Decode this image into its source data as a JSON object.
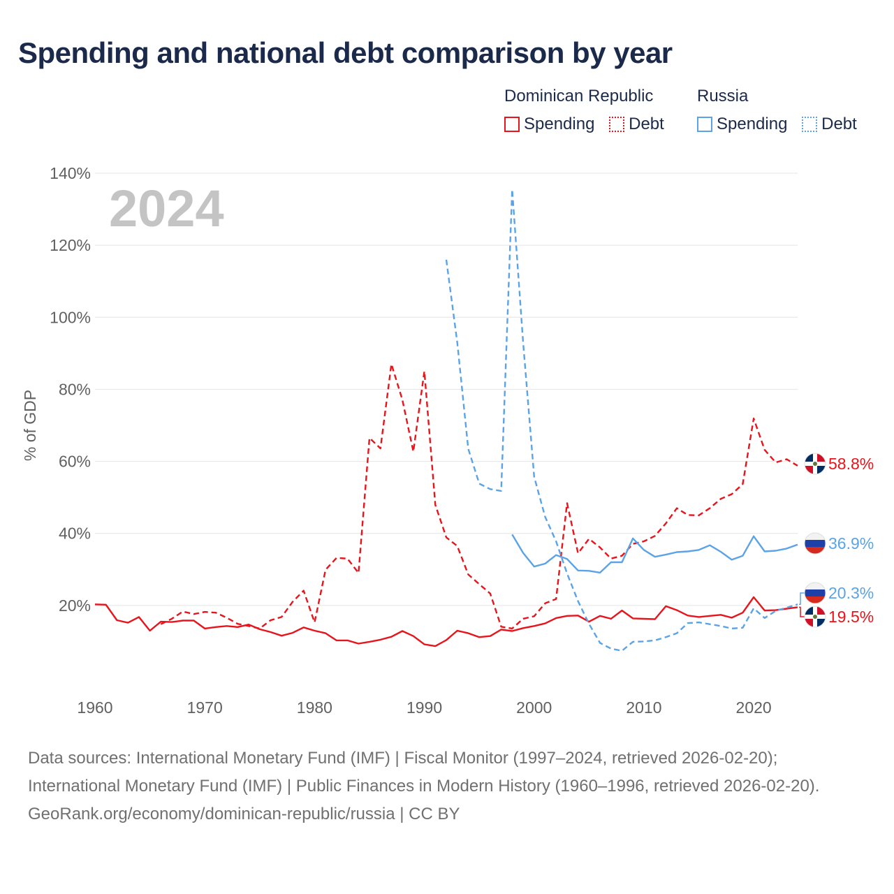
{
  "title": "Spending and national debt comparison by year",
  "legend": [
    {
      "group": "Dominican Republic",
      "color": "#e8141c",
      "items": [
        {
          "label": "Spending",
          "style": "solid"
        },
        {
          "label": "Debt",
          "style": "dotted"
        }
      ]
    },
    {
      "group": "Russia",
      "color": "#5ba3e6",
      "items": [
        {
          "label": "Spending",
          "style": "solid"
        },
        {
          "label": "Debt",
          "style": "dotted"
        }
      ]
    }
  ],
  "chart_data": {
    "type": "line",
    "year_watermark": "2024",
    "ylabel": "% of GDP",
    "xlabel": "",
    "xlim": [
      1960,
      2024
    ],
    "ylim": [
      0,
      140
    ],
    "x_ticks": [
      1960,
      1970,
      1980,
      1990,
      2000,
      2010,
      2020
    ],
    "y_ticks": [
      20,
      40,
      60,
      80,
      100,
      120,
      140
    ],
    "y_tick_labels": [
      "20%",
      "40%",
      "60%",
      "80%",
      "100%",
      "120%",
      "140%"
    ],
    "series": [
      {
        "name": "Dominican Republic Spending",
        "color": "#e8141c",
        "dash": "solid",
        "end_label": "19.5%",
        "flag": "dominican-republic",
        "points": [
          [
            1960,
            20.3
          ],
          [
            1961,
            20.2
          ],
          [
            1962,
            15.9
          ],
          [
            1963,
            15.2
          ],
          [
            1964,
            16.8
          ],
          [
            1965,
            13.0
          ],
          [
            1966,
            15.5
          ],
          [
            1967,
            15.4
          ],
          [
            1968,
            15.8
          ],
          [
            1969,
            15.8
          ],
          [
            1970,
            13.6
          ],
          [
            1971,
            14.0
          ],
          [
            1972,
            14.3
          ],
          [
            1973,
            14.0
          ],
          [
            1974,
            14.7
          ],
          [
            1975,
            13.4
          ],
          [
            1976,
            12.6
          ],
          [
            1977,
            11.6
          ],
          [
            1978,
            12.4
          ],
          [
            1979,
            13.9
          ],
          [
            1980,
            13.0
          ],
          [
            1981,
            12.3
          ],
          [
            1982,
            10.3
          ],
          [
            1983,
            10.3
          ],
          [
            1984,
            9.4
          ],
          [
            1985,
            9.9
          ],
          [
            1986,
            10.5
          ],
          [
            1987,
            11.3
          ],
          [
            1988,
            12.9
          ],
          [
            1989,
            11.5
          ],
          [
            1990,
            9.2
          ],
          [
            1991,
            8.7
          ],
          [
            1992,
            10.4
          ],
          [
            1993,
            13.0
          ],
          [
            1994,
            12.3
          ],
          [
            1995,
            11.2
          ],
          [
            1996,
            11.5
          ],
          [
            1997,
            13.3
          ],
          [
            1998,
            12.9
          ],
          [
            1999,
            13.7
          ],
          [
            2000,
            14.3
          ],
          [
            2001,
            15.0
          ],
          [
            2002,
            16.5
          ],
          [
            2003,
            17.1
          ],
          [
            2004,
            17.2
          ],
          [
            2005,
            15.5
          ],
          [
            2006,
            17.1
          ],
          [
            2007,
            16.3
          ],
          [
            2008,
            18.6
          ],
          [
            2009,
            16.4
          ],
          [
            2010,
            16.3
          ],
          [
            2011,
            16.2
          ],
          [
            2012,
            19.8
          ],
          [
            2013,
            18.7
          ],
          [
            2014,
            17.2
          ],
          [
            2015,
            16.8
          ],
          [
            2016,
            17.1
          ],
          [
            2017,
            17.4
          ],
          [
            2018,
            16.6
          ],
          [
            2019,
            18.0
          ],
          [
            2020,
            22.3
          ],
          [
            2021,
            18.6
          ],
          [
            2022,
            18.7
          ],
          [
            2023,
            19.1
          ],
          [
            2024,
            19.5
          ]
        ]
      },
      {
        "name": "Dominican Republic Debt",
        "color": "#e8141c",
        "dash": "dashed",
        "end_label": "58.8%",
        "flag": "dominican-republic",
        "points": [
          [
            1966,
            14.8
          ],
          [
            1967,
            16.3
          ],
          [
            1968,
            18.3
          ],
          [
            1969,
            17.6
          ],
          [
            1970,
            18.2
          ],
          [
            1971,
            18.0
          ],
          [
            1972,
            16.6
          ],
          [
            1973,
            14.9
          ],
          [
            1974,
            14.3
          ],
          [
            1975,
            13.6
          ],
          [
            1976,
            15.9
          ],
          [
            1977,
            16.8
          ],
          [
            1978,
            21.0
          ],
          [
            1979,
            24.1
          ],
          [
            1980,
            15.3
          ],
          [
            1981,
            29.9
          ],
          [
            1982,
            33.2
          ],
          [
            1983,
            33.0
          ],
          [
            1984,
            29.0
          ],
          [
            1985,
            66.5
          ],
          [
            1986,
            63.6
          ],
          [
            1987,
            87.0
          ],
          [
            1988,
            77.1
          ],
          [
            1989,
            62.7
          ],
          [
            1990,
            85.0
          ],
          [
            1991,
            47.9
          ],
          [
            1992,
            38.9
          ],
          [
            1993,
            36.5
          ],
          [
            1994,
            28.6
          ],
          [
            1995,
            25.9
          ],
          [
            1996,
            23.3
          ],
          [
            1997,
            14.1
          ],
          [
            1998,
            13.6
          ],
          [
            1999,
            16.3
          ],
          [
            2000,
            17.0
          ],
          [
            2001,
            20.6
          ],
          [
            2002,
            21.8
          ],
          [
            2003,
            48.4
          ],
          [
            2004,
            34.5
          ],
          [
            2005,
            38.5
          ],
          [
            2006,
            36.1
          ],
          [
            2007,
            33.0
          ],
          [
            2008,
            33.8
          ],
          [
            2009,
            37.1
          ],
          [
            2010,
            37.8
          ],
          [
            2011,
            39.3
          ],
          [
            2012,
            42.8
          ],
          [
            2013,
            47.0
          ],
          [
            2014,
            45.1
          ],
          [
            2015,
            45.0
          ],
          [
            2016,
            47.0
          ],
          [
            2017,
            49.6
          ],
          [
            2018,
            50.9
          ],
          [
            2019,
            53.7
          ],
          [
            2020,
            71.9
          ],
          [
            2021,
            63.2
          ],
          [
            2022,
            59.7
          ],
          [
            2023,
            60.6
          ],
          [
            2024,
            58.8
          ]
        ]
      },
      {
        "name": "Russia Spending",
        "color": "#5ba3e6",
        "dash": "solid",
        "end_label": "36.9%",
        "flag": "russia",
        "points": [
          [
            1998,
            39.7
          ],
          [
            1999,
            34.6
          ],
          [
            2000,
            30.8
          ],
          [
            2001,
            31.6
          ],
          [
            2002,
            34.0
          ],
          [
            2003,
            32.9
          ],
          [
            2004,
            29.7
          ],
          [
            2005,
            29.6
          ],
          [
            2006,
            29.1
          ],
          [
            2007,
            32.0
          ],
          [
            2008,
            32.0
          ],
          [
            2009,
            38.6
          ],
          [
            2010,
            35.4
          ],
          [
            2011,
            33.5
          ],
          [
            2012,
            34.1
          ],
          [
            2013,
            34.8
          ],
          [
            2014,
            35.0
          ],
          [
            2015,
            35.4
          ],
          [
            2016,
            36.7
          ],
          [
            2017,
            34.9
          ],
          [
            2018,
            32.7
          ],
          [
            2019,
            33.8
          ],
          [
            2020,
            39.2
          ],
          [
            2021,
            35.0
          ],
          [
            2022,
            35.2
          ],
          [
            2023,
            35.8
          ],
          [
            2024,
            36.9
          ]
        ]
      },
      {
        "name": "Russia Debt",
        "color": "#5ba3e6",
        "dash": "dashed",
        "end_label": "20.3%",
        "flag": "russia",
        "points": [
          [
            1992,
            116.0
          ],
          [
            1993,
            93.0
          ],
          [
            1994,
            63.5
          ],
          [
            1995,
            53.8
          ],
          [
            1996,
            52.3
          ],
          [
            1997,
            51.8
          ],
          [
            1998,
            135.5
          ],
          [
            1999,
            93.0
          ],
          [
            2000,
            55.7
          ],
          [
            2001,
            44.6
          ],
          [
            2002,
            37.8
          ],
          [
            2003,
            28.9
          ],
          [
            2004,
            21.2
          ],
          [
            2005,
            14.9
          ],
          [
            2006,
            9.6
          ],
          [
            2007,
            8.0
          ],
          [
            2008,
            7.4
          ],
          [
            2009,
            9.9
          ],
          [
            2010,
            10.0
          ],
          [
            2011,
            10.3
          ],
          [
            2012,
            11.2
          ],
          [
            2013,
            12.3
          ],
          [
            2014,
            15.1
          ],
          [
            2015,
            15.3
          ],
          [
            2016,
            14.8
          ],
          [
            2017,
            14.3
          ],
          [
            2018,
            13.6
          ],
          [
            2019,
            13.8
          ],
          [
            2020,
            19.2
          ],
          [
            2021,
            16.5
          ],
          [
            2022,
            18.5
          ],
          [
            2023,
            19.4
          ],
          [
            2024,
            20.3
          ]
        ]
      }
    ]
  },
  "footer": {
    "sources": "Data sources: International Monetary Fund (IMF) | Fiscal Monitor (1997–2024, retrieved 2026-02-20); International Monetary Fund (IMF) | Public Finances in Modern History (1960–1996, retrieved 2026-02-20).",
    "credit": "GeoRank.org/economy/dominican-republic/russia | CC BY"
  }
}
